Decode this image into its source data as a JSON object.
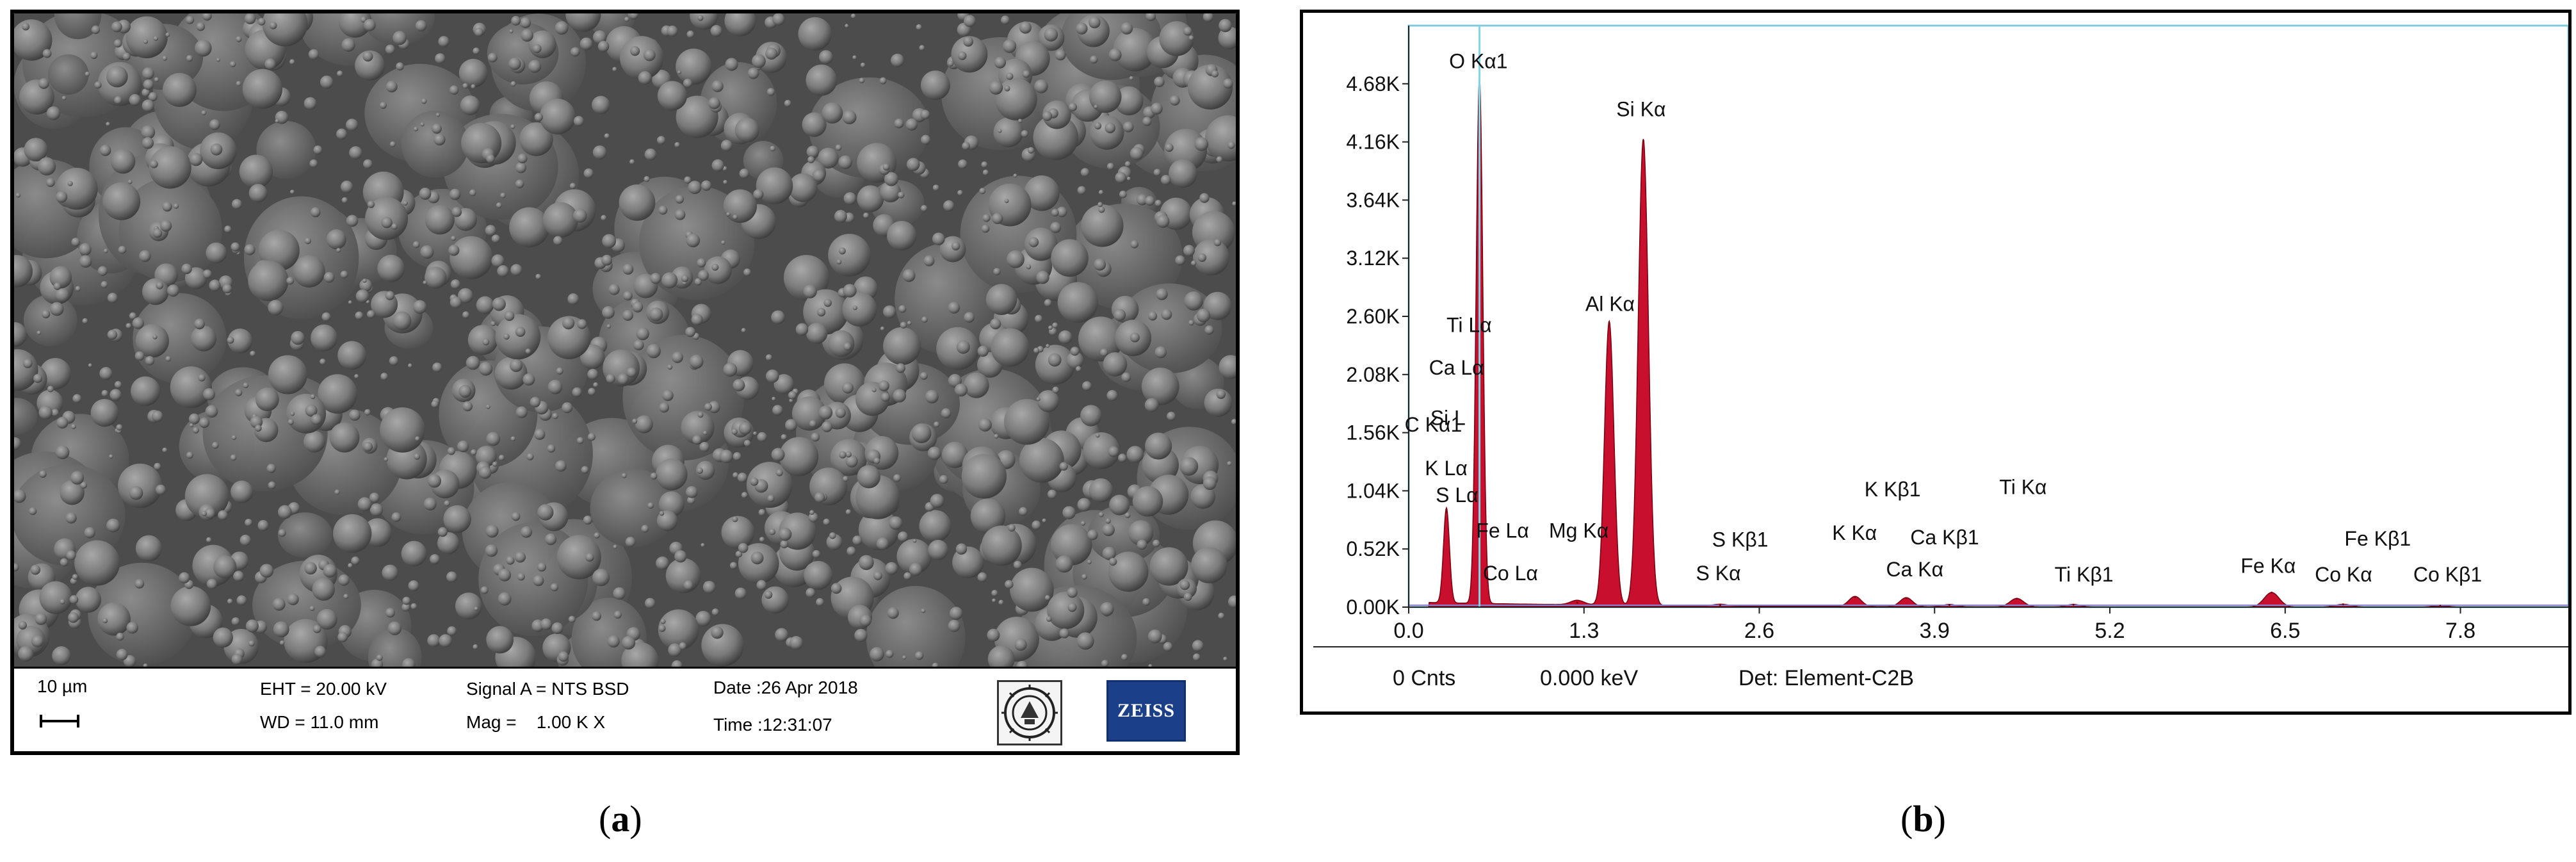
{
  "panel_a": {
    "caption_open": "(",
    "caption_letter": "a",
    "caption_close": ")",
    "scale_label": "10 µm",
    "eht": "EHT = 20.00 kV",
    "wd": "WD = 11.0 mm",
    "signal": "Signal A = NTS BSD",
    "mag": "Mag =    1.00 K X",
    "date": "Date :26 Apr 2018",
    "time": "Time :12:31:07",
    "logo_text": "ZEISS"
  },
  "panel_b": {
    "caption_open": "(",
    "caption_letter": "b",
    "caption_close": ")",
    "footer_counts": "0 Cnts",
    "footer_energy": "0.000 keV",
    "footer_detector": "Det: Element-C2B"
  },
  "chart_data": {
    "type": "area",
    "title": "",
    "xlabel": "",
    "ylabel": "",
    "xlim": [
      0,
      8.6
    ],
    "ylim": [
      0,
      5200
    ],
    "x_ticks": [
      0.0,
      1.3,
      2.6,
      3.9,
      5.2,
      6.5,
      7.8
    ],
    "x_tick_labels": [
      "0.0",
      "1.3",
      "2.6",
      "3.9",
      "5.2",
      "6.5",
      "7.8"
    ],
    "y_ticks": [
      0,
      520,
      1040,
      1560,
      2080,
      2600,
      3120,
      3640,
      4160,
      4680
    ],
    "y_tick_labels": [
      "0.00K",
      "0.52K",
      "1.04K",
      "1.56K",
      "2.08K",
      "2.60K",
      "3.12K",
      "3.64K",
      "4.16K",
      "4.68K"
    ],
    "cursor_x": 0.525,
    "colors": {
      "fill": "#c8102e",
      "outline": "#7a0010",
      "cursor": "#7fd6e6",
      "baseline": "#8a7fd0"
    },
    "peaks": [
      {
        "energy": 0.28,
        "counts": 850,
        "width": 0.022
      },
      {
        "energy": 0.525,
        "counts": 4700,
        "width": 0.025
      },
      {
        "energy": 1.25,
        "counts": 40,
        "width": 0.05
      },
      {
        "energy": 1.487,
        "counts": 2540,
        "width": 0.035
      },
      {
        "energy": 1.74,
        "counts": 4170,
        "width": 0.038
      },
      {
        "energy": 2.31,
        "counts": 15,
        "width": 0.05
      },
      {
        "energy": 3.31,
        "counts": 90,
        "width": 0.045
      },
      {
        "energy": 3.69,
        "counts": 80,
        "width": 0.045
      },
      {
        "energy": 4.01,
        "counts": 20,
        "width": 0.05
      },
      {
        "energy": 4.51,
        "counts": 75,
        "width": 0.05
      },
      {
        "energy": 4.93,
        "counts": 22,
        "width": 0.05
      },
      {
        "energy": 6.4,
        "counts": 130,
        "width": 0.055
      },
      {
        "energy": 6.93,
        "counts": 25,
        "width": 0.06
      },
      {
        "energy": 7.65,
        "counts": 12,
        "width": 0.06
      }
    ],
    "annotations": [
      {
        "text": "O  Kα1",
        "energy": 0.3,
        "counts": 4820
      },
      {
        "text": "Si Kα",
        "energy": 1.54,
        "counts": 4390
      },
      {
        "text": "Al Kα",
        "energy": 1.31,
        "counts": 2650
      },
      {
        "text": "Ti Lα",
        "energy": 0.28,
        "counts": 2460
      },
      {
        "text": "Ca Lα",
        "energy": 0.15,
        "counts": 2080
      },
      {
        "text": "Si L",
        "energy": 0.16,
        "counts": 1630
      },
      {
        "text": "C  Kα1",
        "energy": -0.03,
        "counts": 1570
      },
      {
        "text": "K  Lα",
        "energy": 0.12,
        "counts": 1180
      },
      {
        "text": "S  Lα",
        "energy": 0.2,
        "counts": 940
      },
      {
        "text": "Fe Lα",
        "energy": 0.5,
        "counts": 620
      },
      {
        "text": "Mg Kα",
        "energy": 1.04,
        "counts": 620
      },
      {
        "text": "Co Lα",
        "energy": 0.55,
        "counts": 240
      },
      {
        "text": "S  Kβ1",
        "energy": 2.25,
        "counts": 540
      },
      {
        "text": "S  Kα",
        "energy": 2.13,
        "counts": 240
      },
      {
        "text": "K  Kβ1",
        "energy": 3.38,
        "counts": 990
      },
      {
        "text": "K  Kα",
        "energy": 3.14,
        "counts": 600
      },
      {
        "text": "Ca Kβ1",
        "energy": 3.72,
        "counts": 560
      },
      {
        "text": "Ca Kα",
        "energy": 3.54,
        "counts": 275
      },
      {
        "text": "Ti Kα",
        "energy": 4.38,
        "counts": 1010
      },
      {
        "text": "Ti Kβ1",
        "energy": 4.79,
        "counts": 230
      },
      {
        "text": "Fe Kα",
        "energy": 6.17,
        "counts": 305
      },
      {
        "text": "Co Kα",
        "energy": 6.72,
        "counts": 230
      },
      {
        "text": "Fe Kβ1",
        "energy": 6.94,
        "counts": 550
      },
      {
        "text": "Co Kβ1",
        "energy": 7.45,
        "counts": 230
      }
    ]
  }
}
